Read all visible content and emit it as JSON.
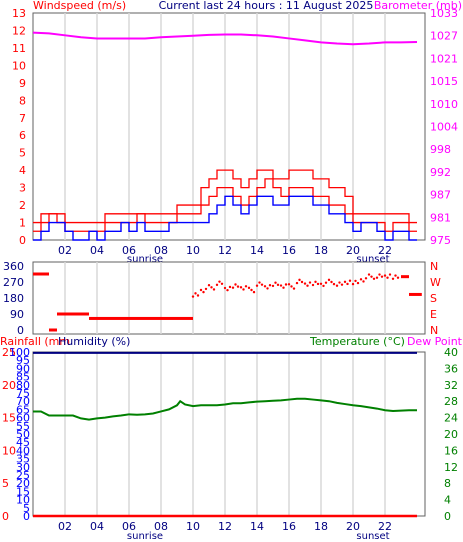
{
  "header": {
    "left_label": "Windspeed (m/s)",
    "center_label": "Current last 24 hours : 11 August 2025",
    "right_label": "Barometer (mb)"
  },
  "colors": {
    "windspeed": "#ff0000",
    "gust": "#ff0000",
    "avg_wind": "#0000ff",
    "barometer": "#ff00ff",
    "direction": "#ff0000",
    "rainfall": "#ff0000",
    "humidity": "#000080",
    "temperature": "#008000",
    "dewpoint": "#ff00ff",
    "grid": "#d8d8d8",
    "axis_left_top": "#ff0000",
    "axis_right_top": "#ff00ff",
    "axis_left_bottom": "#0000ff",
    "axis_right_bottom": "#008000"
  },
  "x_ticks": [
    "02",
    "04",
    "06",
    "08",
    "10",
    "12",
    "14",
    "16",
    "18",
    "20",
    "22"
  ],
  "sunrise_label": "sunrise",
  "sunset_label": "sunset",
  "sunrise_hour": 6.0,
  "sunset_hour": 21.0,
  "chart_data": [
    {
      "type": "line",
      "x_range_hours": [
        0,
        24.5
      ],
      "left_axis": {
        "ticks": [
          "0",
          "1",
          "2",
          "3",
          "4",
          "5",
          "6",
          "7",
          "8",
          "9",
          "10",
          "11",
          "12",
          "13"
        ],
        "ylim": [
          0,
          13
        ]
      },
      "right_axis": {
        "ticks": [
          "975",
          "981",
          "987",
          "992",
          "998",
          "1004",
          "1010",
          "1015",
          "1021",
          "1027",
          "1033"
        ],
        "ylim": [
          975,
          1033
        ]
      },
      "series": [
        {
          "name": "Windspeed (m/s)",
          "x": [
            0,
            0.5,
            1,
            1.5,
            2,
            2.5,
            3,
            3.5,
            4,
            4.5,
            5,
            5.5,
            6,
            6.5,
            7,
            7.5,
            8,
            8.5,
            9,
            9.5,
            10,
            10.5,
            11,
            11.5,
            12,
            12.5,
            13,
            13.5,
            14,
            14.5,
            15,
            15.5,
            16,
            16.5,
            17,
            17.5,
            18,
            18.5,
            19,
            19.5,
            20,
            20.5,
            21,
            21.5,
            22,
            22.5,
            23,
            23.5,
            24
          ],
          "y": [
            0.5,
            1,
            1.5,
            1,
            0.5,
            0.5,
            0.5,
            0.5,
            0.5,
            1,
            1,
            1,
            1,
            1.5,
            1,
            1,
            1,
            1,
            1.5,
            1.5,
            1.5,
            2,
            2.5,
            3,
            3,
            2.5,
            2,
            2.5,
            3,
            3.5,
            3,
            2.5,
            3,
            3,
            3,
            2.5,
            2.5,
            2,
            2,
            1.5,
            1,
            1,
            1,
            1,
            0.5,
            1,
            1,
            0.5,
            0.5
          ]
        },
        {
          "name": "Gust",
          "x": [
            0,
            0.5,
            1,
            1.5,
            2,
            2.5,
            3,
            3.5,
            4,
            4.5,
            5,
            5.5,
            6,
            6.5,
            7,
            7.5,
            8,
            8.5,
            9,
            9.5,
            10,
            10.5,
            11,
            11.5,
            12,
            12.5,
            13,
            13.5,
            14,
            14.5,
            15,
            15.5,
            16,
            16.5,
            17,
            17.5,
            18,
            18.5,
            19,
            19.5,
            20,
            20.5,
            21,
            21.5,
            22,
            22.5,
            23,
            23.5,
            24
          ],
          "y": [
            1,
            1.5,
            1.5,
            1.5,
            1,
            1,
            1,
            1,
            1,
            1.5,
            1.5,
            1.5,
            1.5,
            1.5,
            1.5,
            1.5,
            1.5,
            1.5,
            2,
            2,
            2,
            3,
            3.5,
            4,
            4,
            3.5,
            3,
            3.5,
            4,
            4,
            3.5,
            3.5,
            4,
            4,
            4,
            3.5,
            3.5,
            3,
            3,
            2.5,
            1.5,
            1.5,
            1.5,
            1.5,
            1.5,
            1.5,
            1.5,
            1,
            1
          ]
        },
        {
          "name": "Average wind",
          "x": [
            0,
            0.5,
            1,
            1.5,
            2,
            2.5,
            3,
            3.5,
            4,
            4.5,
            5,
            5.5,
            6,
            6.5,
            7,
            7.5,
            8,
            8.5,
            9,
            9.5,
            10,
            10.5,
            11,
            11.5,
            12,
            12.5,
            13,
            13.5,
            14,
            14.5,
            15,
            15.5,
            16,
            16.5,
            17,
            17.5,
            18,
            18.5,
            19,
            19.5,
            20,
            20.5,
            21,
            21.5,
            22,
            22.5,
            23,
            23.5,
            24
          ],
          "y": [
            0,
            0.5,
            1,
            1,
            0.5,
            0,
            0,
            0.5,
            0,
            0.5,
            0.5,
            1,
            0.5,
            1,
            0.5,
            0.5,
            0.5,
            1,
            1,
            1,
            1,
            1,
            1.5,
            2,
            2.5,
            2,
            1.5,
            2,
            2.5,
            2.5,
            2,
            2,
            2.5,
            2.5,
            2.5,
            2,
            2,
            1.5,
            1.5,
            1,
            0.5,
            1,
            1,
            0.5,
            0,
            0.5,
            0.5,
            0,
            0
          ]
        },
        {
          "name": "Barometer (mb)",
          "axis": "right",
          "x": [
            0,
            1,
            2,
            3,
            4,
            5,
            6,
            7,
            8,
            9,
            10,
            11,
            12,
            13,
            14,
            15,
            16,
            17,
            18,
            19,
            20,
            21,
            22,
            23,
            24
          ],
          "y": [
            1028,
            1027.8,
            1027.3,
            1026.8,
            1026.5,
            1026.5,
            1026.5,
            1026.5,
            1026.8,
            1027,
            1027.2,
            1027.4,
            1027.5,
            1027.5,
            1027.3,
            1027,
            1026.5,
            1026,
            1025.5,
            1025.2,
            1025,
            1025.2,
            1025.5,
            1025.5,
            1025.6
          ]
        }
      ]
    },
    {
      "type": "scatter",
      "x_range_hours": [
        0,
        24.5
      ],
      "left_axis": {
        "ticks": [
          "360",
          "270",
          "180",
          "90",
          "0"
        ],
        "ylim": [
          0,
          360
        ]
      },
      "right_axis": {
        "ticks": [
          "N",
          "W",
          "S",
          "E",
          "N"
        ]
      },
      "series": [
        {
          "name": "Wind direction",
          "x": [
            0,
            0.5,
            1,
            1.5,
            2,
            2.5,
            3,
            3.5,
            4,
            4.5,
            5,
            5.5,
            6,
            6.5,
            7,
            7.5,
            8,
            8.5,
            9,
            9.5,
            10,
            10.5,
            11,
            11.5,
            12,
            12.5,
            13,
            13.5,
            14,
            14.5,
            15,
            15.5,
            16,
            16.5,
            17,
            17.5,
            18,
            18.5,
            19,
            19.5,
            20,
            20.5,
            21,
            21.5,
            22,
            22.5,
            23,
            23.5,
            24
          ],
          "y": [
            315,
            315,
            0,
            90,
            90,
            90,
            90,
            65,
            65,
            65,
            65,
            65,
            65,
            65,
            65,
            65,
            65,
            65,
            65,
            65,
            200,
            225,
            240,
            260,
            230,
            250,
            240,
            225,
            255,
            240,
            260,
            250,
            245,
            270,
            255,
            265,
            260,
            270,
            255,
            265,
            270,
            285,
            300,
            300,
            300,
            300,
            300,
            200,
            200
          ]
        }
      ]
    },
    {
      "type": "line",
      "x_range_hours": [
        0,
        24.5
      ],
      "top_labels": {
        "rainfall": "Rainfall (mm",
        "humidity": "Humidity (%)",
        "temperature": "Temperature (°C)",
        "dewpoint": "Dew Point"
      },
      "left_axis_rain": {
        "ticks": [
          "0",
          "5",
          "10",
          "15",
          "20",
          "25"
        ]
      },
      "left_axis_hum": {
        "ticks": [
          "0",
          "5",
          "10",
          "15",
          "20",
          "25",
          "30",
          "35",
          "40",
          "45",
          "50",
          "55",
          "60",
          "65",
          "70",
          "75",
          "80",
          "85",
          "90",
          "95",
          "100"
        ],
        "ylim": [
          0,
          100
        ]
      },
      "right_axis": {
        "ticks": [
          "0",
          "4",
          "8",
          "12",
          "16",
          "20",
          "24",
          "28",
          "32",
          "36",
          "40"
        ],
        "ylim": [
          0,
          40
        ]
      },
      "series": [
        {
          "name": "Temperature (°C)",
          "axis": "right",
          "x": [
            0,
            0.5,
            1,
            1.5,
            2,
            2.5,
            3,
            3.5,
            4,
            4.5,
            5,
            5.5,
            6,
            6.5,
            7,
            7.5,
            8,
            8.5,
            9,
            9.2,
            9.5,
            10,
            10.5,
            11,
            11.5,
            12,
            12.5,
            13,
            13.5,
            14,
            14.5,
            15,
            15.5,
            16,
            16.5,
            17,
            17.5,
            18,
            18.5,
            19,
            19.5,
            20,
            20.5,
            21,
            21.5,
            22,
            22.5,
            23,
            23.5,
            24
          ],
          "y": [
            25.5,
            25.5,
            24.5,
            24.5,
            24.5,
            24.5,
            23.8,
            23.5,
            23.8,
            24,
            24.3,
            24.5,
            24.8,
            24.7,
            24.8,
            25,
            25.5,
            26,
            27,
            28,
            27.2,
            26.8,
            27,
            27,
            27,
            27.2,
            27.5,
            27.5,
            27.7,
            27.9,
            28,
            28.1,
            28.2,
            28.4,
            28.6,
            28.6,
            28.4,
            28.2,
            28,
            27.6,
            27.3,
            27,
            26.8,
            26.5,
            26.2,
            25.8,
            25.6,
            25.7,
            25.8,
            25.8
          ]
        },
        {
          "name": "Humidity (%)",
          "x": [
            0,
            24
          ],
          "y": [
            99.5,
            99.5
          ]
        },
        {
          "name": "Rainfall (mm",
          "x": [
            0,
            24
          ],
          "y": [
            0,
            0
          ]
        }
      ]
    }
  ]
}
